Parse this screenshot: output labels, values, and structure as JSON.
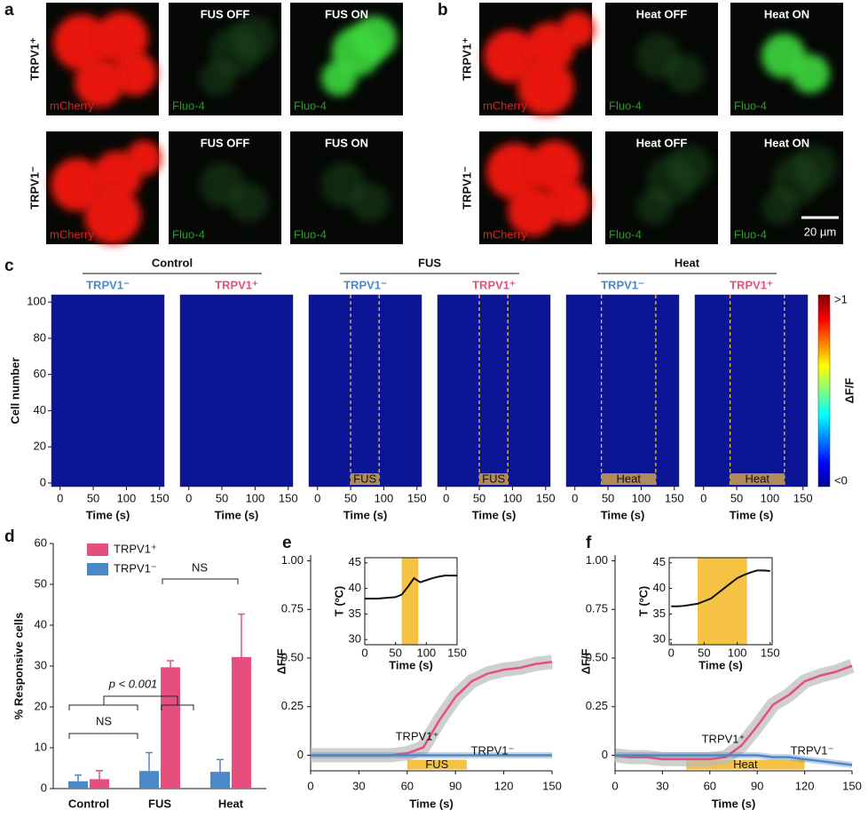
{
  "micrographs": [
    {
      "panel": "a",
      "rows": [
        "TRPV1⁺",
        "TRPV1⁻"
      ],
      "marker": "mCherry",
      "indicator": "Fluo-4",
      "off": "FUS OFF",
      "on": "FUS ON"
    },
    {
      "panel": "b",
      "rows": [
        "TRPV1⁺",
        "TRPV1⁻"
      ],
      "marker": "mCherry",
      "indicator": "Fluo-4",
      "off": "Heat OFF",
      "on": "Heat ON",
      "scale_bar": "20 µm"
    }
  ],
  "chart_data": [
    {
      "type": "heatmap",
      "panel": "c",
      "y_label": "Cell number",
      "x_label": "Time (s)",
      "xlim": [
        -13,
        157
      ],
      "xticks": [
        0,
        50,
        100,
        150
      ],
      "ylim": [
        -2,
        104
      ],
      "yticks": [
        0,
        20,
        40,
        60,
        80,
        100
      ],
      "groups": [
        {
          "title": "Control",
          "panels": [
            {
              "name": "TRPV1⁻",
              "color": "#4a88c8"
            },
            {
              "name": "TRPV1⁺",
              "color": "#e64f7d"
            }
          ]
        },
        {
          "title": "FUS",
          "stimulus": {
            "label": "FUS",
            "start": 50,
            "end": 93
          },
          "panels": [
            {
              "name": "TRPV1⁻",
              "color": "#4a88c8"
            },
            {
              "name": "TRPV1⁺",
              "color": "#e64f7d"
            }
          ]
        },
        {
          "title": "Heat",
          "stimulus": {
            "label": "Heat",
            "start": 40,
            "end": 122
          },
          "panels": [
            {
              "name": "TRPV1⁻",
              "color": "#4a88c8"
            },
            {
              "name": "TRPV1⁺",
              "color": "#e64f7d"
            }
          ]
        }
      ],
      "colorbar": {
        "label": "ΔF/F",
        "max_label": ">1",
        "min_label": "<0"
      }
    },
    {
      "type": "bar",
      "panel": "d",
      "y_label": "% Responsive cells",
      "categories": [
        "Control",
        "FUS",
        "Heat"
      ],
      "series": [
        {
          "name": "TRPV1⁻",
          "color": "#4a88c8",
          "values": [
            1.8,
            4.3,
            4.1
          ],
          "errors": [
            1.5,
            4.5,
            3.0
          ]
        },
        {
          "name": "TRPV1⁺",
          "color": "#e64f7d",
          "values": [
            2.3,
            29.7,
            32.2
          ],
          "errors": [
            2.1,
            1.6,
            10.5
          ]
        }
      ],
      "ylim": [
        0,
        60
      ],
      "yticks": [
        0,
        10,
        20,
        30,
        40,
        50,
        60
      ],
      "annotations": [
        "NS",
        "p < 0.001",
        "NS"
      ]
    },
    {
      "type": "line",
      "panel": "e",
      "x_label": "Time (s)",
      "y_label": "ΔF/F",
      "x": [
        0,
        10,
        20,
        30,
        40,
        50,
        60,
        70,
        80,
        90,
        100,
        110,
        120,
        130,
        140,
        150
      ],
      "xlim": [
        0,
        150
      ],
      "xticks": [
        0,
        30,
        60,
        90,
        120,
        150
      ],
      "ylim": [
        -0.08,
        1.03
      ],
      "yticks": [
        0,
        0.25,
        {
          "value": 0.5,
          "label": "0.50"
        },
        0.75,
        {
          "value": 1,
          "label": "1.00"
        }
      ],
      "stimulus": {
        "label": "FUS",
        "start": 60,
        "end": 97
      },
      "series": [
        {
          "name": "TRPV1⁺",
          "color": "#e64f7d",
          "values": [
            0,
            0,
            0,
            0,
            0,
            0,
            0.01,
            0.04,
            0.18,
            0.3,
            0.38,
            0.42,
            0.44,
            0.45,
            0.47,
            0.48
          ]
        },
        {
          "name": "TRPV1⁻",
          "color": "#4a88c8",
          "values": [
            0,
            0,
            0,
            0,
            0,
            0,
            0,
            0,
            0,
            0,
            0,
            0,
            0,
            0,
            0,
            0
          ]
        }
      ],
      "inset": {
        "y_label": "T (ºC)",
        "x_label": "Time (s)",
        "color": "#111111",
        "x": [
          0,
          10,
          20,
          30,
          40,
          50,
          60,
          70,
          80,
          90,
          100,
          110,
          120,
          130,
          140,
          150
        ],
        "values": [
          38,
          38,
          38,
          38.1,
          38.2,
          38.3,
          38.8,
          40.3,
          42,
          41.2,
          41.6,
          42,
          42.3,
          42.5,
          42.5,
          42.5
        ],
        "xlim": [
          0,
          150
        ],
        "xticks": [
          0,
          50,
          100,
          150
        ],
        "ylim": [
          29,
          46
        ],
        "yticks": [
          30,
          35,
          40,
          45
        ],
        "highlight": [
          60,
          87
        ]
      }
    },
    {
      "type": "line",
      "panel": "f",
      "x_label": "Time (s)",
      "y_label": "ΔF/F",
      "x": [
        0,
        10,
        20,
        30,
        40,
        50,
        60,
        70,
        80,
        90,
        100,
        110,
        120,
        130,
        140,
        150
      ],
      "xlim": [
        0,
        150
      ],
      "xticks": [
        0,
        30,
        60,
        90,
        120,
        150
      ],
      "ylim": [
        -0.08,
        1.03
      ],
      "yticks": [
        0,
        0.25,
        {
          "value": 0.5,
          "label": "0.50"
        },
        0.75,
        {
          "value": 1,
          "label": "1.00"
        }
      ],
      "stimulus": {
        "label": "Heat",
        "start": 45,
        "end": 120
      },
      "series": [
        {
          "name": "TRPV1⁺",
          "color": "#e64f7d",
          "values": [
            0,
            -0.01,
            -0.01,
            -0.02,
            -0.02,
            -0.02,
            -0.02,
            -0.01,
            0.05,
            0.15,
            0.26,
            0.31,
            0.38,
            0.41,
            0.43,
            0.46
          ]
        },
        {
          "name": "TRPV1⁻",
          "color": "#4a88c8",
          "values": [
            0,
            0,
            0,
            0,
            0,
            0,
            0,
            0,
            0,
            0,
            -0.01,
            -0.01,
            -0.02,
            -0.03,
            -0.04,
            -0.05
          ]
        }
      ],
      "inset": {
        "y_label": "T (ºC)",
        "x_label": "Time (s)",
        "color": "#111111",
        "x": [
          0,
          10,
          20,
          30,
          40,
          50,
          60,
          70,
          80,
          90,
          100,
          110,
          120,
          130,
          140,
          150
        ],
        "values": [
          36.5,
          36.5,
          36.6,
          36.8,
          37,
          37.5,
          38,
          39,
          40,
          41,
          42,
          42.6,
          43.1,
          43.5,
          43.5,
          43.4
        ],
        "xlim": [
          -3,
          153
        ],
        "xticks": [
          0,
          50,
          100,
          150
        ],
        "ylim": [
          29,
          46
        ],
        "yticks": [
          30,
          35,
          40,
          45
        ],
        "highlight": [
          40,
          115
        ]
      }
    }
  ]
}
